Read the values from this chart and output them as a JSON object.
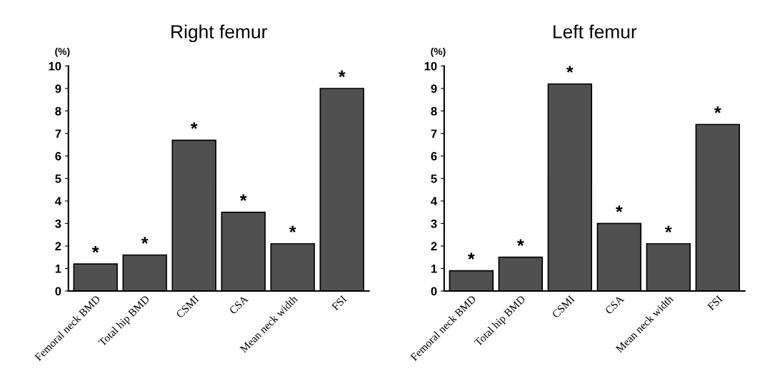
{
  "chart_data": [
    {
      "type": "bar",
      "title": "Right femur",
      "ylabel": "(%)",
      "categories": [
        "Femoral neck BMD",
        "Total hip BMD",
        "CSMI",
        "CSA",
        "Mean neck width",
        "FSI"
      ],
      "values": [
        1.2,
        1.6,
        6.7,
        3.5,
        2.1,
        9.0
      ],
      "color": "#505050",
      "ylim": [
        0,
        10
      ],
      "yticks": [
        0,
        1,
        2,
        3,
        4,
        5,
        6,
        7,
        8,
        9,
        10
      ],
      "grid": false,
      "legend": false,
      "annotations": [
        {
          "text": "*",
          "x": "Femoral neck BMD",
          "y": 1.2
        },
        {
          "text": "*",
          "x": "Total hip BMD",
          "y": 1.6
        },
        {
          "text": "*",
          "x": "CSMI",
          "y": 6.7
        },
        {
          "text": "*",
          "x": "CSA",
          "y": 3.5
        },
        {
          "text": "*",
          "x": "Mean neck width",
          "y": 2.1
        },
        {
          "text": "*",
          "x": "FSI",
          "y": 9.0
        }
      ]
    },
    {
      "type": "bar",
      "title": "Left femur",
      "ylabel": "(%)",
      "categories": [
        "Femoral neck BMD",
        "Total hip BMD",
        "CSMI",
        "CSA",
        "Mean neck width",
        "FSI"
      ],
      "values": [
        0.9,
        1.5,
        9.2,
        3.0,
        2.1,
        7.4
      ],
      "color": "#505050",
      "ylim": [
        0,
        10
      ],
      "yticks": [
        0,
        1,
        2,
        3,
        4,
        5,
        6,
        7,
        8,
        9,
        10
      ],
      "grid": false,
      "legend": false,
      "annotations": [
        {
          "text": "*",
          "x": "Femoral neck BMD",
          "y": 0.9
        },
        {
          "text": "*",
          "x": "Total hip BMD",
          "y": 1.5
        },
        {
          "text": "*",
          "x": "CSMI",
          "y": 9.2
        },
        {
          "text": "*",
          "x": "CSA",
          "y": 3.0
        },
        {
          "text": "*",
          "x": "Mean neck width",
          "y": 2.1
        },
        {
          "text": "*",
          "x": "FSI",
          "y": 7.4
        }
      ]
    }
  ]
}
